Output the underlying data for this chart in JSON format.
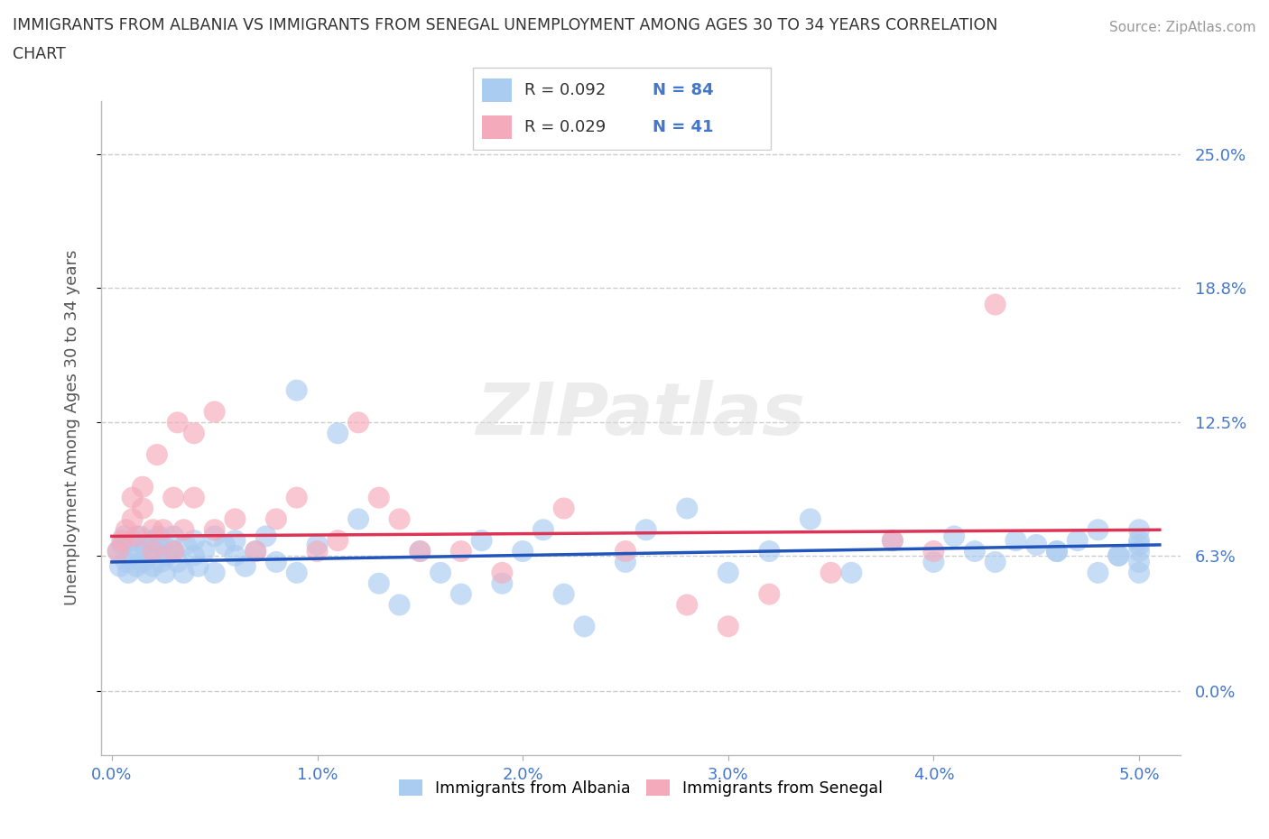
{
  "title_line1": "IMMIGRANTS FROM ALBANIA VS IMMIGRANTS FROM SENEGAL UNEMPLOYMENT AMONG AGES 30 TO 34 YEARS CORRELATION",
  "title_line2": "CHART",
  "source_text": "Source: ZipAtlas.com",
  "ylabel": "Unemployment Among Ages 30 to 34 years",
  "xlim_min": -0.0005,
  "xlim_max": 0.052,
  "ylim_min": -0.03,
  "ylim_max": 0.275,
  "yticks": [
    0.0,
    0.063,
    0.125,
    0.188,
    0.25
  ],
  "ytick_labels": [
    "0.0%",
    "6.3%",
    "12.5%",
    "18.8%",
    "25.0%"
  ],
  "xticks": [
    0.0,
    0.01,
    0.02,
    0.03,
    0.04,
    0.05
  ],
  "xtick_labels": [
    "0.0%",
    "1.0%",
    "2.0%",
    "3.0%",
    "4.0%",
    "5.0%"
  ],
  "albania_fill_color": "#aaccf0",
  "senegal_fill_color": "#f5aabb",
  "albania_line_color": "#2255bb",
  "senegal_line_color": "#dd3355",
  "tick_label_color": "#4477cc",
  "watermark": "ZIPatlas",
  "legend_r_albania": "R = 0.092",
  "legend_n_albania": "N = 84",
  "legend_r_senegal": "R = 0.029",
  "legend_n_senegal": "N = 41",
  "albania_x": [
    0.0003,
    0.0004,
    0.0005,
    0.0006,
    0.0007,
    0.0008,
    0.001,
    0.001,
    0.0012,
    0.0013,
    0.0014,
    0.0015,
    0.0016,
    0.0017,
    0.0018,
    0.002,
    0.002,
    0.0022,
    0.0023,
    0.0024,
    0.0025,
    0.0026,
    0.0027,
    0.003,
    0.003,
    0.0032,
    0.0035,
    0.0036,
    0.004,
    0.004,
    0.0042,
    0.0045,
    0.005,
    0.005,
    0.0055,
    0.006,
    0.006,
    0.0065,
    0.007,
    0.0075,
    0.008,
    0.009,
    0.009,
    0.01,
    0.011,
    0.012,
    0.013,
    0.014,
    0.015,
    0.016,
    0.017,
    0.018,
    0.019,
    0.02,
    0.021,
    0.022,
    0.023,
    0.025,
    0.026,
    0.028,
    0.03,
    0.032,
    0.034,
    0.036,
    0.038,
    0.04,
    0.042,
    0.044,
    0.046,
    0.048,
    0.049,
    0.05,
    0.05,
    0.05,
    0.05,
    0.05,
    0.05,
    0.049,
    0.048,
    0.047,
    0.046,
    0.045,
    0.043,
    0.041
  ],
  "albania_y": [
    0.065,
    0.058,
    0.068,
    0.072,
    0.06,
    0.055,
    0.063,
    0.07,
    0.058,
    0.065,
    0.072,
    0.06,
    0.068,
    0.055,
    0.063,
    0.07,
    0.058,
    0.065,
    0.072,
    0.06,
    0.068,
    0.055,
    0.063,
    0.065,
    0.072,
    0.06,
    0.055,
    0.068,
    0.063,
    0.07,
    0.058,
    0.065,
    0.072,
    0.055,
    0.068,
    0.063,
    0.07,
    0.058,
    0.065,
    0.072,
    0.06,
    0.14,
    0.055,
    0.068,
    0.12,
    0.08,
    0.05,
    0.04,
    0.065,
    0.055,
    0.045,
    0.07,
    0.05,
    0.065,
    0.075,
    0.045,
    0.03,
    0.06,
    0.075,
    0.085,
    0.055,
    0.065,
    0.08,
    0.055,
    0.07,
    0.06,
    0.065,
    0.07,
    0.065,
    0.075,
    0.063,
    0.068,
    0.07,
    0.055,
    0.06,
    0.065,
    0.075,
    0.063,
    0.055,
    0.07,
    0.065,
    0.068,
    0.06,
    0.072
  ],
  "senegal_x": [
    0.0003,
    0.0005,
    0.0007,
    0.001,
    0.001,
    0.0012,
    0.0015,
    0.0015,
    0.002,
    0.002,
    0.0022,
    0.0025,
    0.003,
    0.003,
    0.0032,
    0.0035,
    0.004,
    0.004,
    0.005,
    0.005,
    0.006,
    0.007,
    0.008,
    0.009,
    0.01,
    0.011,
    0.012,
    0.013,
    0.014,
    0.015,
    0.017,
    0.019,
    0.022,
    0.025,
    0.028,
    0.03,
    0.032,
    0.035,
    0.038,
    0.04,
    0.043
  ],
  "senegal_y": [
    0.065,
    0.07,
    0.075,
    0.08,
    0.09,
    0.072,
    0.085,
    0.095,
    0.075,
    0.065,
    0.11,
    0.075,
    0.09,
    0.065,
    0.125,
    0.075,
    0.12,
    0.09,
    0.13,
    0.075,
    0.08,
    0.065,
    0.08,
    0.09,
    0.065,
    0.07,
    0.125,
    0.09,
    0.08,
    0.065,
    0.065,
    0.055,
    0.085,
    0.065,
    0.04,
    0.03,
    0.045,
    0.055,
    0.07,
    0.065,
    0.18
  ]
}
